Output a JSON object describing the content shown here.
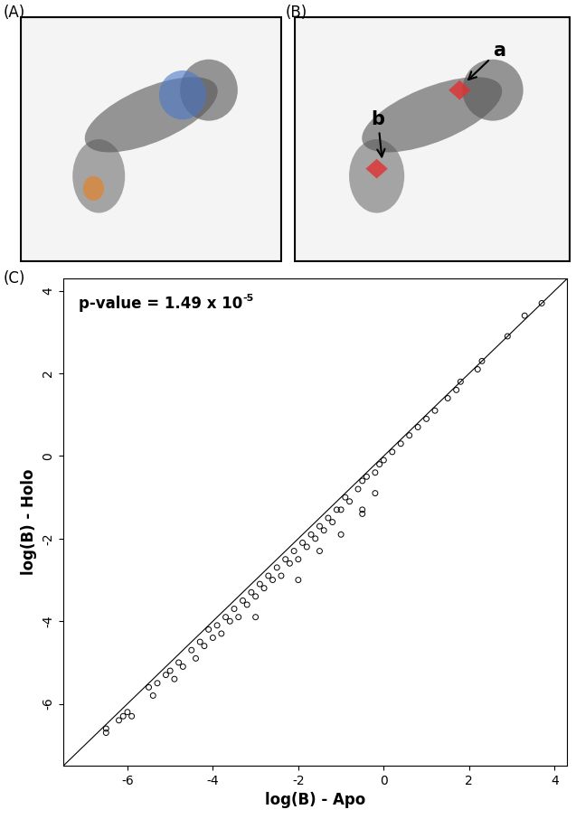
{
  "panels": [
    {
      "label": "(A)"
    },
    {
      "label": "(B)",
      "markers": [
        "a",
        "b"
      ]
    }
  ],
  "chart_data": {
    "type": "scatter",
    "panel_label": "(C)",
    "annotation": {
      "text": "p-value = 1.49 x 10",
      "superscript": "-5"
    },
    "x_label": "log(B) - Apo",
    "y_label": "log(B) - Holo",
    "xlim": [
      -7.5,
      4.3
    ],
    "ylim": [
      -7.5,
      4.3
    ],
    "xticks": [
      -6,
      -4,
      -2,
      0,
      2,
      4
    ],
    "yticks": [
      -6,
      -4,
      -2,
      0,
      2,
      4
    ],
    "series": [
      {
        "type": "scatter",
        "marker": "o",
        "color": "#000000",
        "x": [
          -6.5,
          -6.5,
          -6.2,
          -6.1,
          -6.0,
          -5.9,
          -5.5,
          -5.4,
          -5.3,
          -5.1,
          -5.0,
          -4.9,
          -4.8,
          -4.7,
          -4.5,
          -4.4,
          -4.3,
          -4.2,
          -4.1,
          -4.0,
          -3.9,
          -3.8,
          -3.7,
          -3.6,
          -3.5,
          -3.4,
          -3.3,
          -3.2,
          -3.1,
          -3.0,
          -2.9,
          -2.8,
          -2.7,
          -2.6,
          -2.5,
          -2.4,
          -2.3,
          -2.2,
          -2.1,
          -2.0,
          -1.9,
          -1.8,
          -1.7,
          -1.6,
          -1.5,
          -1.4,
          -1.3,
          -1.2,
          -1.1,
          -1.0,
          -0.9,
          -0.8,
          -0.6,
          -0.5,
          -0.4,
          -0.2,
          -0.1,
          0.0,
          0.2,
          0.4,
          0.6,
          0.8,
          1.0,
          1.2,
          1.5,
          1.7,
          1.8,
          2.2,
          2.3,
          2.9,
          3.3,
          3.7,
          -2.0,
          -1.5,
          -1.0,
          -0.2,
          -0.5,
          -3.0,
          -0.5
        ],
        "values": [
          -6.7,
          -6.6,
          -6.4,
          -6.3,
          -6.2,
          -6.3,
          -5.6,
          -5.8,
          -5.5,
          -5.3,
          -5.2,
          -5.4,
          -5.0,
          -5.1,
          -4.7,
          -4.9,
          -4.5,
          -4.6,
          -4.2,
          -4.4,
          -4.1,
          -4.3,
          -3.9,
          -4.0,
          -3.7,
          -3.9,
          -3.5,
          -3.6,
          -3.3,
          -3.4,
          -3.1,
          -3.2,
          -2.9,
          -3.0,
          -2.7,
          -2.9,
          -2.5,
          -2.6,
          -2.3,
          -2.5,
          -2.1,
          -2.2,
          -1.9,
          -2.0,
          -1.7,
          -1.8,
          -1.5,
          -1.6,
          -1.3,
          -1.3,
          -1.0,
          -1.1,
          -0.8,
          -0.6,
          -0.5,
          -0.4,
          -0.2,
          -0.1,
          0.1,
          0.3,
          0.5,
          0.7,
          0.9,
          1.1,
          1.4,
          1.6,
          1.8,
          2.1,
          2.3,
          2.9,
          3.4,
          3.7,
          -3.0,
          -2.3,
          -1.9,
          -0.9,
          -1.4,
          -3.9,
          -1.3
        ]
      },
      {
        "type": "line",
        "line_style": "solid",
        "color": "#000000",
        "x": [
          -7.5,
          4.3
        ],
        "values": [
          -7.5,
          4.3
        ]
      }
    ]
  }
}
